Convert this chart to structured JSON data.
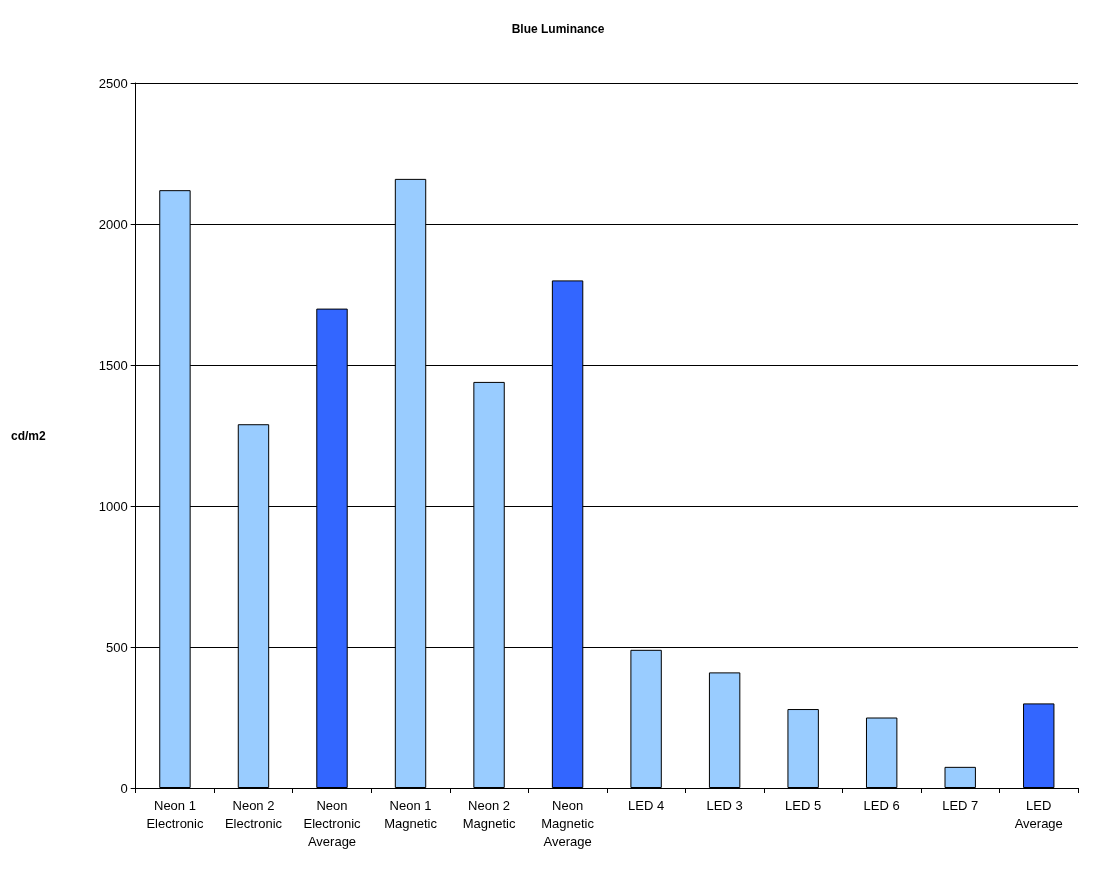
{
  "chart_data": {
    "type": "bar",
    "title": "Blue Luminance",
    "ylabel": "cd/m2",
    "categories": [
      "Neon 1\nElectronic",
      "Neon 2\nElectronic",
      "Neon\nElectronic\nAverage",
      "Neon 1\nMagnetic",
      "Neon 2\nMagnetic",
      "Neon\nMagnetic\nAverage",
      "LED 4",
      "LED 3",
      "LED 5",
      "LED 6",
      "LED 7",
      "LED\nAverage"
    ],
    "values": [
      2120,
      1290,
      1700,
      2160,
      1440,
      1800,
      490,
      410,
      280,
      250,
      75,
      300
    ],
    "colors": [
      "#99ccff",
      "#99ccff",
      "#3366ff",
      "#99ccff",
      "#99ccff",
      "#3366ff",
      "#99ccff",
      "#99ccff",
      "#99ccff",
      "#99ccff",
      "#99ccff",
      "#3366ff"
    ],
    "ylim": [
      0,
      2500
    ],
    "yticks": [
      0,
      500,
      1000,
      1500,
      2000,
      2500
    ],
    "grid": "y"
  }
}
